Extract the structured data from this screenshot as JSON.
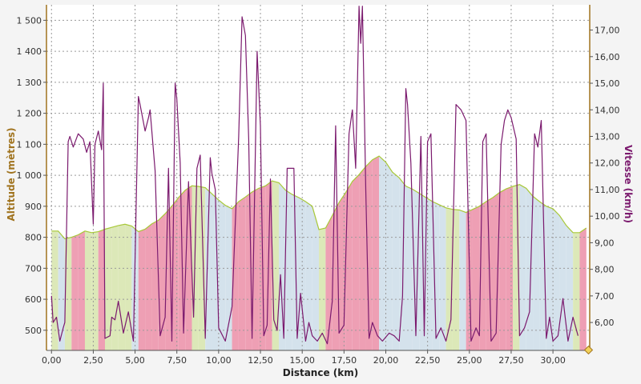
{
  "chart_data": {
    "type": "line",
    "xlabel": "Distance (km)",
    "ylabel_left": "Altitude (mètres)",
    "ylabel_right": "Vitesse (km/h)",
    "xlim": [
      -0.3,
      32.2
    ],
    "ylim_left": [
      435,
      1550
    ],
    "ylim_right": [
      4.95,
      17.95
    ],
    "x_ticks": [
      "0,00",
      "2,50",
      "5,00",
      "7,50",
      "10,00",
      "12,50",
      "15,00",
      "17,50",
      "20,00",
      "22,50",
      "25,00",
      "27,50",
      "30,00"
    ],
    "y_left_ticks": [
      "500",
      "600",
      "700",
      "800",
      "900",
      "1 000",
      "1 100",
      "1 200",
      "1 300",
      "1 400",
      "1 500"
    ],
    "y_right_ticks": [
      "6,00",
      "7,00",
      "8,00",
      "9,00",
      "10,00",
      "11,00",
      "12,00",
      "13,00",
      "14,00",
      "15,00",
      "16,00",
      "17,00"
    ],
    "grid": true,
    "colors": {
      "altitude_line": "#a8c838",
      "speed_line": "#7b1a6e",
      "climb_fill": "#ee9fb4",
      "flat_fill": "#dce8b8",
      "descent_fill": "#d4e2ec",
      "left_axis": "#a0731e",
      "right_axis": "#a0731e"
    },
    "series": [
      {
        "name": "Altitude (mètres)",
        "axis": "left",
        "x": [
          0,
          0.4,
          0.8,
          1.2,
          1.6,
          2.0,
          2.4,
          2.8,
          3.2,
          3.6,
          4.0,
          4.4,
          4.8,
          5.2,
          5.6,
          6.0,
          6.4,
          6.8,
          7.2,
          7.6,
          8.0,
          8.4,
          8.8,
          9.2,
          9.6,
          10.0,
          10.4,
          10.8,
          11.2,
          11.6,
          12.0,
          12.4,
          12.8,
          13.2,
          13.6,
          14.0,
          14.4,
          14.8,
          15.2,
          15.6,
          16.0,
          16.4,
          16.8,
          17.2,
          17.6,
          18.0,
          18.4,
          18.8,
          19.2,
          19.6,
          20.0,
          20.4,
          20.8,
          21.2,
          21.6,
          22.0,
          22.4,
          22.8,
          23.2,
          23.6,
          24.0,
          24.4,
          24.8,
          25.2,
          25.6,
          26.0,
          26.4,
          26.8,
          27.2,
          27.6,
          28.0,
          28.4,
          28.8,
          29.2,
          29.6,
          30.0,
          30.4,
          30.8,
          31.2,
          31.6,
          32.0
        ],
        "values": [
          820,
          820,
          795,
          800,
          808,
          820,
          815,
          818,
          826,
          832,
          838,
          842,
          836,
          818,
          826,
          843,
          855,
          876,
          900,
          928,
          952,
          966,
          964,
          960,
          940,
          920,
          903,
          892,
          915,
          930,
          946,
          958,
          966,
          982,
          976,
          952,
          938,
          928,
          915,
          900,
          825,
          830,
          870,
          912,
          944,
          980,
          1002,
          1028,
          1050,
          1062,
          1042,
          1010,
          992,
          965,
          955,
          942,
          928,
          915,
          905,
          895,
          890,
          888,
          880,
          890,
          900,
          915,
          928,
          944,
          956,
          964,
          970,
          958,
          932,
          915,
          900,
          892,
          870,
          838,
          815,
          815,
          830
        ]
      },
      {
        "name": "Vitesse (km/h)",
        "axis": "right",
        "x": [
          0.0,
          0.1,
          0.3,
          0.5,
          0.7,
          0.8,
          1.0,
          1.1,
          1.3,
          1.6,
          1.9,
          2.1,
          2.3,
          2.5,
          2.6,
          2.8,
          3.0,
          3.1,
          3.2,
          3.5,
          3.6,
          3.8,
          4.0,
          4.3,
          4.6,
          4.9,
          5.2,
          5.3,
          5.6,
          5.8,
          5.9,
          6.2,
          6.5,
          6.8,
          7.0,
          7.2,
          7.4,
          7.5,
          7.7,
          7.9,
          8.2,
          8.5,
          8.7,
          8.9,
          9.2,
          9.5,
          9.6,
          9.8,
          10.0,
          10.4,
          10.8,
          11.2,
          11.4,
          11.6,
          11.8,
          12.0,
          12.3,
          12.5,
          12.7,
          12.9,
          13.1,
          13.3,
          13.5,
          13.7,
          13.9,
          14.1,
          14.5,
          14.7,
          14.9,
          15.2,
          15.4,
          15.6,
          15.9,
          16.2,
          16.5,
          16.8,
          17.0,
          17.2,
          17.5,
          17.8,
          18.0,
          18.2,
          18.4,
          18.5,
          18.6,
          18.8,
          19.0,
          19.2,
          19.5,
          19.8,
          20.2,
          20.5,
          20.8,
          21.0,
          21.2,
          21.3,
          21.5,
          21.8,
          22.1,
          22.3,
          22.5,
          22.7,
          23.0,
          23.3,
          23.6,
          23.9,
          24.2,
          24.5,
          24.8,
          25.1,
          25.4,
          25.6,
          25.8,
          26.0,
          26.3,
          26.6,
          26.9,
          27.1,
          27.3,
          27.5,
          27.8,
          28.0,
          28.3,
          28.6,
          28.9,
          29.1,
          29.3,
          29.6,
          29.8,
          30.0,
          30.3,
          30.6,
          30.9,
          31.2,
          31.5
        ],
        "values": [
          7.0,
          6.0,
          6.2,
          5.3,
          5.8,
          6.0,
          12.8,
          13.0,
          12.6,
          13.1,
          12.9,
          12.4,
          12.8,
          9.7,
          12.7,
          13.2,
          12.5,
          15.0,
          5.4,
          5.5,
          6.2,
          6.1,
          6.8,
          5.6,
          6.4,
          5.3,
          14.5,
          14.2,
          13.2,
          13.7,
          14.0,
          11.7,
          5.5,
          6.2,
          11.8,
          5.3,
          15.0,
          14.4,
          12.0,
          5.6,
          11.3,
          6.2,
          11.8,
          12.3,
          5.4,
          12.2,
          11.6,
          11.0,
          5.8,
          5.3,
          6.6,
          13.0,
          17.5,
          16.8,
          12.9,
          5.4,
          16.2,
          13.4,
          5.5,
          5.9,
          11.4,
          6.1,
          5.7,
          7.8,
          5.4,
          11.8,
          11.8,
          5.4,
          7.1,
          5.3,
          6.0,
          5.5,
          5.3,
          5.6,
          5.2,
          6.8,
          13.4,
          5.6,
          5.9,
          13.1,
          14.0,
          11.8,
          17.9,
          16.5,
          17.9,
          11.0,
          5.4,
          6.0,
          5.5,
          5.3,
          5.6,
          5.5,
          5.3,
          7.0,
          14.8,
          14.2,
          12.0,
          5.5,
          13.0,
          5.5,
          12.8,
          13.1,
          5.4,
          5.8,
          5.3,
          6.1,
          14.2,
          14.0,
          13.6,
          5.3,
          5.8,
          5.5,
          12.8,
          13.1,
          5.3,
          5.6,
          12.7,
          13.6,
          14.0,
          13.7,
          12.9,
          5.5,
          5.8,
          6.4,
          13.1,
          12.6,
          13.6,
          5.4,
          6.2,
          5.3,
          5.5,
          6.9,
          5.3,
          6.2,
          5.5
        ]
      }
    ]
  }
}
